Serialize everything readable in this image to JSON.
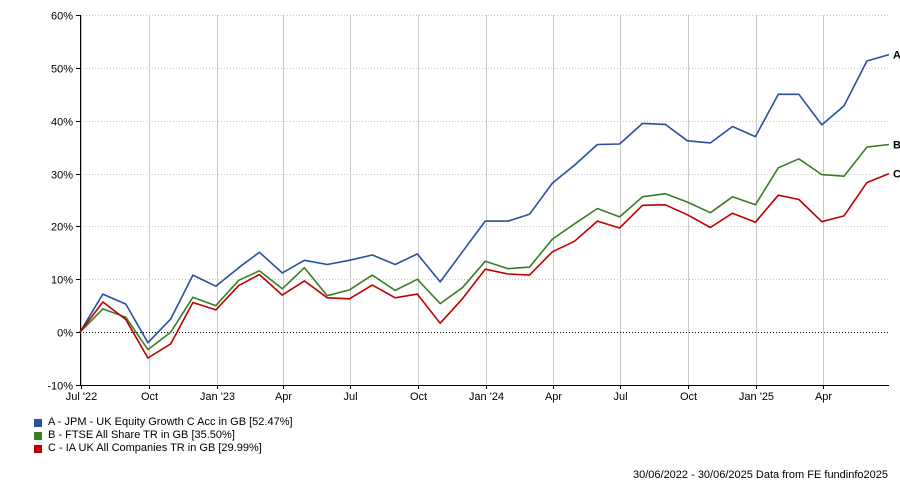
{
  "chart_data": {
    "type": "line",
    "ylim": [
      -10,
      60
    ],
    "y_ticks": [
      -10,
      0,
      10,
      20,
      30,
      40,
      50,
      60
    ],
    "y_tick_labels": [
      "-10%",
      "0%",
      "10%",
      "20%",
      "30%",
      "40%",
      "50%",
      "60%"
    ],
    "x_start": "2022-06-30",
    "x_end": "2025-06-30",
    "x_ticks": [
      "2022-07-01",
      "2022-10-01",
      "2023-01-01",
      "2023-04-01",
      "2023-07-01",
      "2023-10-01",
      "2024-01-01",
      "2024-04-01",
      "2024-07-01",
      "2024-10-01",
      "2025-01-01",
      "2025-04-01"
    ],
    "x_tick_labels": [
      "Jul '22",
      "Oct",
      "Jan '23",
      "Apr",
      "Jul",
      "Oct",
      "Jan '24",
      "Apr",
      "Jul",
      "Oct",
      "Jan '25",
      "Apr"
    ],
    "grid": true,
    "x": [
      "2022-06-30",
      "2022-07-31",
      "2022-08-31",
      "2022-09-30",
      "2022-10-31",
      "2022-11-30",
      "2022-12-31",
      "2023-01-31",
      "2023-02-28",
      "2023-03-31",
      "2023-04-30",
      "2023-05-31",
      "2023-06-30",
      "2023-07-31",
      "2023-08-31",
      "2023-09-30",
      "2023-10-31",
      "2023-11-30",
      "2023-12-31",
      "2024-01-31",
      "2024-02-29",
      "2024-03-31",
      "2024-04-30",
      "2024-05-31",
      "2024-06-30",
      "2024-07-31",
      "2024-08-31",
      "2024-09-30",
      "2024-10-31",
      "2024-11-30",
      "2024-12-31",
      "2025-01-31",
      "2025-02-28",
      "2025-03-31",
      "2025-04-30",
      "2025-05-31",
      "2025-06-30"
    ],
    "series": [
      {
        "name": "A - JPM - UK Equity Growth C Acc in GB [52.47%]",
        "end_label": "A",
        "color": "#2a4f9e",
        "values": [
          0,
          7.2,
          5.3,
          -2.0,
          2.5,
          10.8,
          8.7,
          12.2,
          15.1,
          11.2,
          13.6,
          12.8,
          13.6,
          14.6,
          12.8,
          14.8,
          9.5,
          15.2,
          21.0,
          21.0,
          22.3,
          28.2,
          31.6,
          35.5,
          35.6,
          39.5,
          39.3,
          36.2,
          35.8,
          38.9,
          37.0,
          45.0,
          45.0,
          39.2,
          42.8,
          51.3,
          52.5
        ]
      },
      {
        "name": "B - FTSE All Share TR in GB [35.50%]",
        "end_label": "B",
        "color": "#3a7d23",
        "values": [
          0,
          4.4,
          2.8,
          -3.3,
          0.0,
          6.6,
          5.0,
          9.8,
          11.6,
          8.2,
          12.2,
          6.9,
          8.0,
          10.8,
          7.9,
          10.0,
          5.4,
          8.4,
          13.4,
          12.0,
          12.3,
          17.6,
          20.5,
          23.4,
          21.8,
          25.6,
          26.2,
          24.6,
          22.6,
          25.6,
          24.1,
          31.1,
          32.8,
          29.8,
          29.5,
          35.0,
          35.5
        ]
      },
      {
        "name": "C - IA UK All Companies TR in GB [29.99%]",
        "end_label": "C",
        "color": "#c00000",
        "values": [
          0,
          5.7,
          2.4,
          -4.9,
          -2.2,
          5.6,
          4.2,
          8.8,
          10.9,
          7.0,
          9.7,
          6.5,
          6.3,
          8.9,
          6.5,
          7.2,
          1.7,
          6.3,
          11.9,
          11.0,
          10.8,
          15.2,
          17.2,
          21.0,
          19.7,
          24.0,
          24.1,
          22.2,
          19.8,
          22.5,
          20.8,
          25.9,
          25.1,
          20.9,
          22.0,
          28.3,
          30.0
        ]
      }
    ]
  },
  "footer": {
    "text": "30/06/2022 - 30/06/2025 Data from FE fundinfo2025"
  }
}
